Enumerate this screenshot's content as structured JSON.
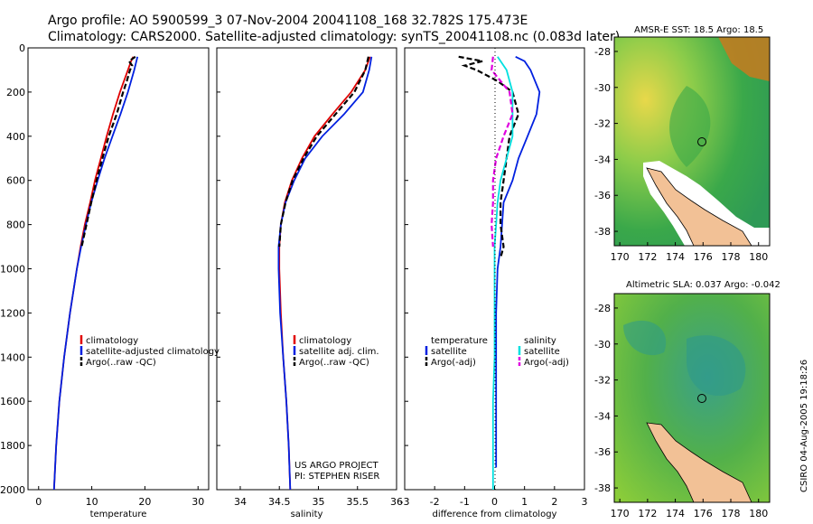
{
  "titles": {
    "line1": "Argo profile: AO 5900599_3 07-Nov-2004 20041108_168 32.782S 175.473E",
    "line2": "Climatology: CARS2000. Satellite-adjusted climatology: synTS_20041108.nc (0.083d later)"
  },
  "depth_ticks": [
    "0",
    "200",
    "400",
    "600",
    "800",
    "1000",
    "1200",
    "1400",
    "1600",
    "1800",
    "2000"
  ],
  "credit": {
    "project": "US ARGO PROJECT",
    "pi": "PI: STEPHEN RISER"
  },
  "sidebar_stamp": "CSIRO 04-Aug-2005 19:18:26",
  "colors": {
    "climatology": "#e00000",
    "satellite": "#0020e0",
    "argo": "#000000",
    "cyan": "#00e0e0",
    "magenta": "#e000e0",
    "land": "#f2c196"
  },
  "chart_data": [
    {
      "type": "line",
      "xlabel": "temperature",
      "xlim": [
        -2,
        32
      ],
      "ylim": [
        2000,
        0
      ],
      "xticks": [
        "0",
        "10",
        "20",
        "30"
      ],
      "legend": [
        "climatology",
        "satellite-adjusted climatology",
        "Argo(..raw -QC)"
      ],
      "series": [
        {
          "name": "climatology",
          "color": "#e00000",
          "dash": "",
          "depth": [
            40,
            60,
            100,
            200,
            300,
            400,
            500,
            600,
            700,
            800,
            900,
            1000,
            1200,
            1400,
            1600,
            1800,
            2000
          ],
          "values": [
            17.8,
            17.4,
            16.8,
            15.3,
            14.0,
            12.8,
            11.7,
            10.6,
            9.7,
            8.7,
            7.9,
            7.2,
            5.9,
            4.8,
            3.9,
            3.3,
            2.9
          ]
        },
        {
          "name": "satellite-adjusted climatology",
          "color": "#0020e0",
          "dash": "",
          "depth": [
            40,
            60,
            100,
            200,
            300,
            400,
            500,
            600,
            700,
            800,
            900,
            1000,
            1200,
            1400,
            1600,
            1800,
            2000
          ],
          "values": [
            18.6,
            18.4,
            18.0,
            16.8,
            15.4,
            13.9,
            12.4,
            11.1,
            9.9,
            8.9,
            8.0,
            7.2,
            5.9,
            4.8,
            3.9,
            3.3,
            2.9
          ]
        },
        {
          "name": "Argo(..raw -QC)",
          "color": "#000000",
          "dash": "6,3",
          "depth": [
            40,
            60,
            80,
            100,
            150,
            200,
            300,
            400,
            500,
            600,
            700,
            800,
            900
          ],
          "values": [
            18.2,
            17.0,
            17.6,
            17.2,
            16.6,
            15.9,
            14.7,
            13.2,
            12.0,
            10.9,
            9.9,
            9.0,
            8.1
          ]
        }
      ]
    },
    {
      "type": "line",
      "xlabel": "salinity",
      "xlim": [
        33.7,
        36.0
      ],
      "ylim": [
        2000,
        0
      ],
      "xticks": [
        "34",
        "34.5",
        "35",
        "35.5",
        "36"
      ],
      "legend": [
        "climatology",
        "satellite adj. clim.",
        "Argo(..raw -QC)"
      ],
      "series": [
        {
          "name": "climatology",
          "color": "#e00000",
          "dash": "",
          "depth": [
            40,
            100,
            200,
            300,
            400,
            500,
            600,
            700,
            800,
            900,
            1000,
            1200,
            1400,
            1600,
            1800,
            2000
          ],
          "values": [
            35.66,
            35.6,
            35.42,
            35.18,
            34.95,
            34.79,
            34.66,
            34.57,
            34.52,
            34.5,
            34.5,
            34.52,
            34.55,
            34.59,
            34.62,
            34.64
          ]
        },
        {
          "name": "satellite adj. clim.",
          "color": "#0020e0",
          "dash": "",
          "depth": [
            40,
            100,
            200,
            300,
            400,
            500,
            600,
            700,
            800,
            900,
            1000,
            1200,
            1400,
            1600,
            1800,
            2000
          ],
          "values": [
            35.68,
            35.65,
            35.57,
            35.33,
            35.05,
            34.83,
            34.69,
            34.58,
            34.52,
            34.49,
            34.49,
            34.51,
            34.55,
            34.59,
            34.62,
            34.64
          ]
        },
        {
          "name": "Argo(..raw -QC)",
          "color": "#000000",
          "dash": "6,3",
          "depth": [
            40,
            100,
            200,
            300,
            400,
            500,
            600,
            700,
            800,
            900
          ],
          "values": [
            35.64,
            35.6,
            35.46,
            35.22,
            34.98,
            34.81,
            34.67,
            34.58,
            34.52,
            34.5
          ]
        }
      ]
    },
    {
      "type": "line",
      "xlabel": "difference from climatology",
      "xlim": [
        -3,
        3
      ],
      "ylim": [
        2000,
        0
      ],
      "xticks": [
        "-3",
        "-2",
        "-1",
        "0",
        "1",
        "2",
        "3"
      ],
      "legend_left": [
        "temperature",
        "satellite",
        "Argo(-adj)"
      ],
      "legend_right": [
        "salinity",
        "satellite",
        "Argo(-adj)"
      ],
      "series": [
        {
          "name": "satellite",
          "color": "#0020e0",
          "dash": "",
          "depth": [
            40,
            60,
            100,
            200,
            300,
            400,
            500,
            600,
            700,
            800,
            900,
            1000,
            1200,
            1400,
            1600,
            1800,
            1900
          ],
          "values": [
            0.7,
            1.0,
            1.2,
            1.5,
            1.4,
            1.1,
            0.8,
            0.6,
            0.3,
            0.25,
            0.2,
            0.1,
            0.05,
            0.05,
            0.05,
            0.05,
            0.05
          ]
        },
        {
          "name": "Argo(-adj)",
          "color": "#000000",
          "dash": "6,3",
          "depth": [
            40,
            60,
            80,
            100,
            150,
            200,
            300,
            400,
            500,
            600,
            700,
            800,
            900,
            950
          ],
          "values": [
            -1.2,
            -0.4,
            -1.0,
            -0.6,
            0.1,
            0.6,
            0.8,
            0.5,
            0.4,
            0.3,
            0.2,
            0.2,
            0.3,
            0.2
          ]
        },
        {
          "name": "satellite",
          "color": "#00e0e0",
          "dash": "",
          "depth": [
            40,
            100,
            200,
            300,
            400,
            500,
            600,
            700,
            800,
            900,
            1000,
            1200,
            1400,
            1600,
            1800,
            2000
          ],
          "values": [
            0.1,
            0.4,
            0.6,
            0.6,
            0.6,
            0.4,
            0.2,
            0.1,
            0.05,
            0.0,
            0.0,
            0.0,
            0.0,
            -0.05,
            -0.05,
            -0.05
          ]
        },
        {
          "name": "Argo(-adj)",
          "color": "#e000e0",
          "dash": "6,3",
          "depth": [
            40,
            100,
            200,
            300,
            400,
            500,
            600,
            700,
            800,
            900
          ],
          "values": [
            -0.05,
            -0.1,
            0.5,
            0.6,
            0.3,
            0.05,
            -0.05,
            -0.05,
            -0.1,
            -0.05
          ]
        }
      ]
    }
  ],
  "maps": [
    {
      "title": "AMSR-E SST: 18.5 Argo: 18.5",
      "xticks": [
        "170",
        "172",
        "174",
        "176",
        "178",
        "180"
      ],
      "yticks": [
        "-28",
        "-30",
        "-32",
        "-34",
        "-36",
        "-38"
      ],
      "lon": [
        169.6,
        180.8
      ],
      "lat": [
        -38.8,
        -27.2
      ],
      "float": [
        175.5,
        -32.8
      ]
    },
    {
      "title": "Altimetric SLA: 0.037 Argo: -0.042",
      "xticks": [
        "170",
        "172",
        "174",
        "176",
        "178",
        "180"
      ],
      "yticks": [
        "-28",
        "-30",
        "-32",
        "-34",
        "-36",
        "-38"
      ],
      "lon": [
        169.6,
        180.8
      ],
      "lat": [
        -38.8,
        -27.2
      ],
      "float": [
        175.5,
        -32.8
      ]
    }
  ]
}
